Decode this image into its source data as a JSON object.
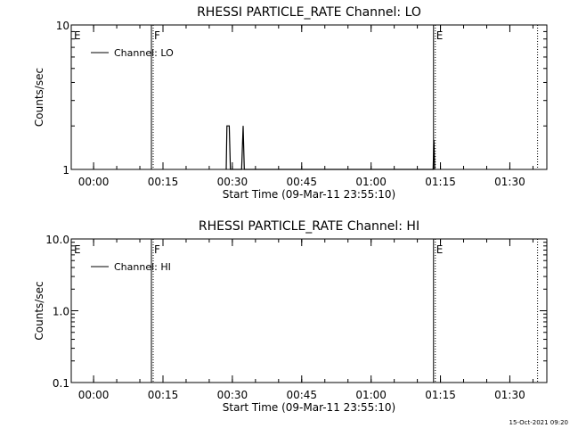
{
  "footer": {
    "timestamp": "15-Oct-2021 09:20"
  },
  "colors": {
    "background": "#ffffff",
    "ink": "#000000"
  },
  "chart_data": [
    {
      "type": "line",
      "title": "RHESSI PARTICLE_RATE Channel: LO",
      "xlabel": "Start Time (09-Mar-11 23:55:10)",
      "ylabel": "Counts/sec",
      "y_scale": "log",
      "ylim": [
        1,
        10
      ],
      "xlim": [
        "23:55:10",
        "01:38:00"
      ],
      "x_ticks": [
        "00:00",
        "00:15",
        "00:30",
        "00:45",
        "01:00",
        "01:15",
        "01:30"
      ],
      "y_ticks": [
        {
          "value": 1,
          "label": "1"
        },
        {
          "value": 10,
          "label": "10"
        }
      ],
      "grid": false,
      "legend": {
        "position": "top-left",
        "entries": [
          "Channel: LO"
        ]
      },
      "series": [
        {
          "name": "Channel: LO",
          "points": [
            [
              "00:28:40",
              1
            ],
            [
              "00:28:50",
              2
            ],
            [
              "00:29:20",
              2
            ],
            [
              "00:29:35",
              1
            ],
            [
              "00:32:00",
              1
            ],
            [
              "00:32:20",
              2
            ],
            [
              "00:32:35",
              1
            ],
            [
              "01:13:25",
              1
            ],
            [
              "01:13:35",
              1.6
            ],
            [
              "01:13:45",
              1
            ]
          ]
        }
      ],
      "markers": [
        {
          "time": "23:55:10",
          "label": "E",
          "style": "none"
        },
        {
          "time": "00:12:30",
          "label": "F",
          "style": "solid+dotted"
        },
        {
          "time": "01:13:30",
          "label": "E",
          "style": "solid+dotted"
        },
        {
          "time": "01:36:00",
          "label": "",
          "style": "dotted"
        }
      ]
    },
    {
      "type": "line",
      "title": "RHESSI PARTICLE_RATE Channel: HI",
      "xlabel": "Start Time (09-Mar-11 23:55:10)",
      "ylabel": "Counts/sec",
      "y_scale": "log",
      "ylim": [
        0.1,
        10
      ],
      "xlim": [
        "23:55:10",
        "01:38:00"
      ],
      "x_ticks": [
        "00:00",
        "00:15",
        "00:30",
        "00:45",
        "01:00",
        "01:15",
        "01:30"
      ],
      "y_ticks": [
        {
          "value": 0.1,
          "label": "0.1"
        },
        {
          "value": 1,
          "label": "1.0"
        },
        {
          "value": 10,
          "label": "10.0"
        }
      ],
      "grid": false,
      "legend": {
        "position": "top-left",
        "entries": [
          "Channel: HI"
        ]
      },
      "series": [
        {
          "name": "Channel: HI",
          "points": []
        }
      ],
      "markers": [
        {
          "time": "23:55:10",
          "label": "E",
          "style": "none"
        },
        {
          "time": "00:12:30",
          "label": "F",
          "style": "solid+dotted"
        },
        {
          "time": "01:13:30",
          "label": "E",
          "style": "solid+dotted"
        },
        {
          "time": "01:36:00",
          "label": "",
          "style": "dotted"
        }
      ]
    }
  ]
}
